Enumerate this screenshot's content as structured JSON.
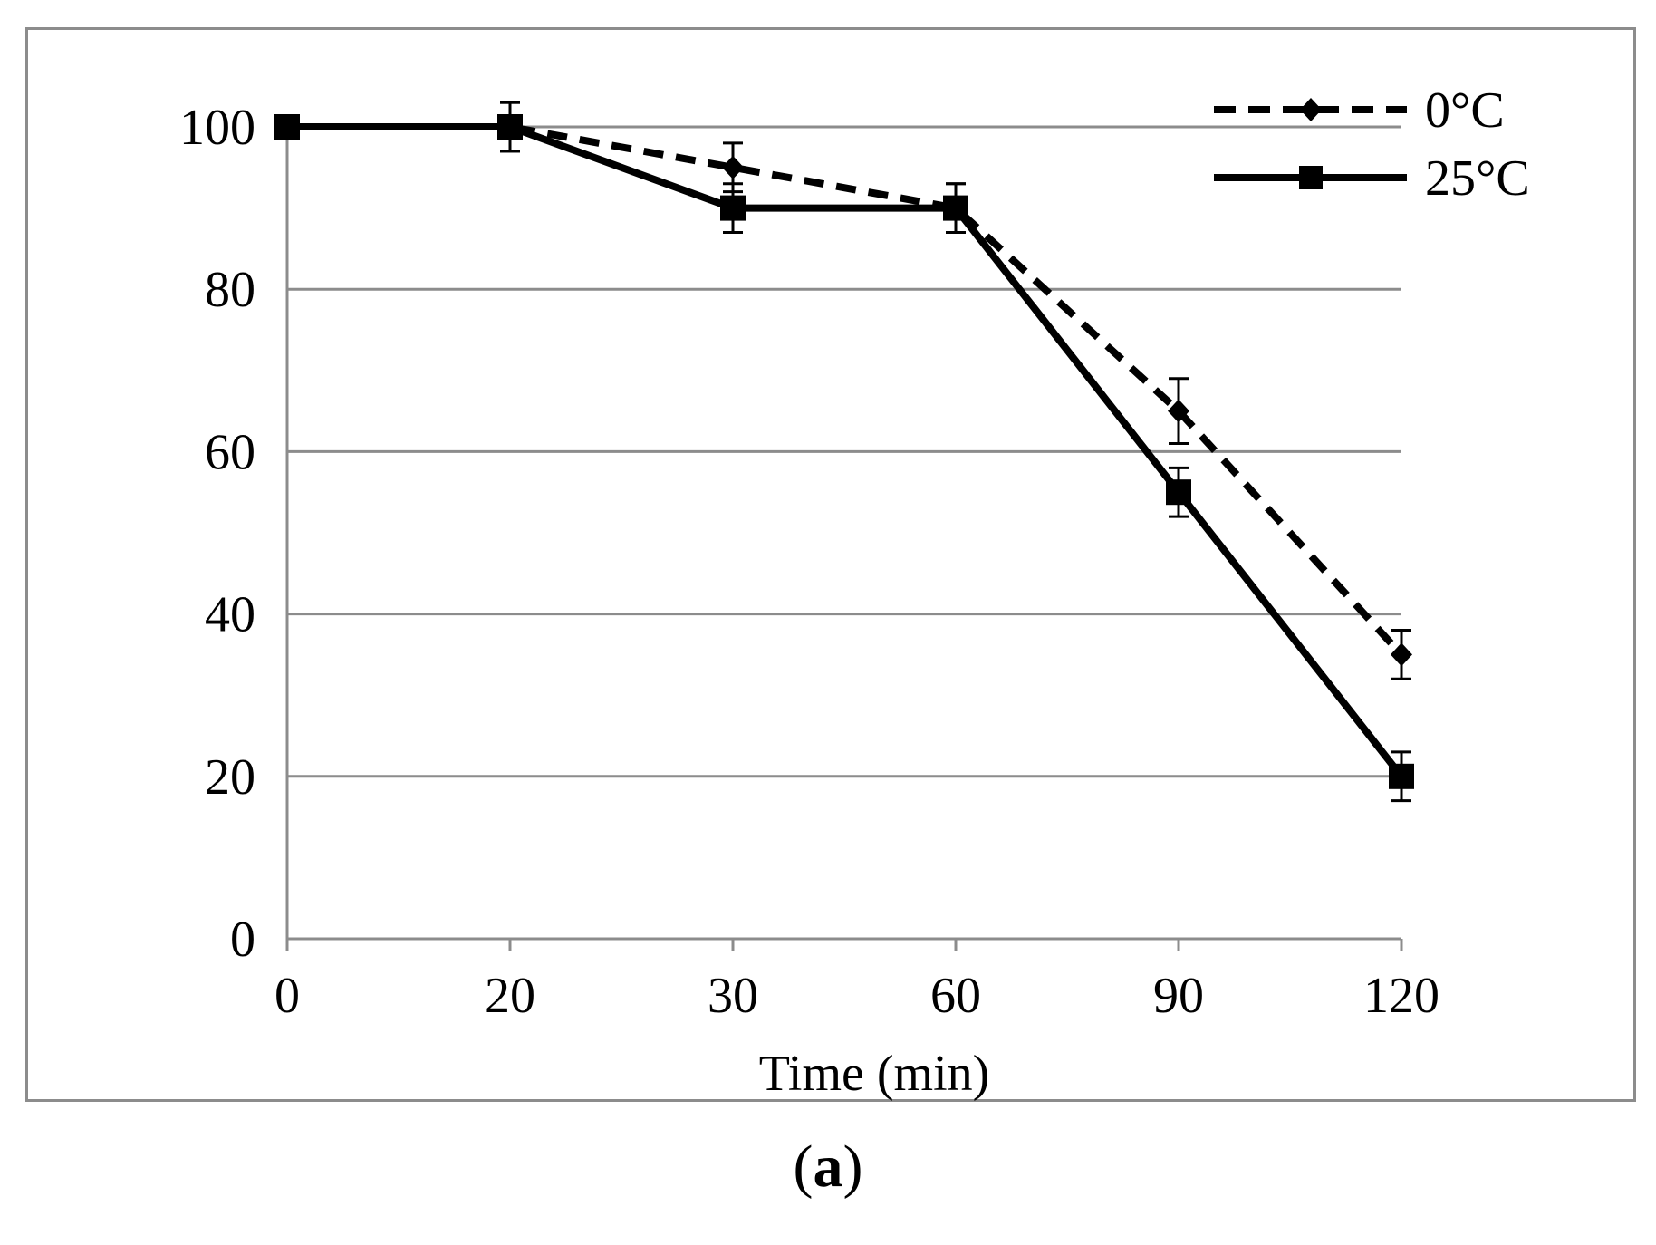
{
  "chart_data": {
    "type": "line",
    "title": "",
    "xlabel": "Time (min)",
    "ylabel": "",
    "categories": [
      "0",
      "20",
      "30",
      "60",
      "90",
      "120"
    ],
    "ylim": [
      0,
      100
    ],
    "yticks": [
      "0",
      "20",
      "40",
      "60",
      "80",
      "100"
    ],
    "grid": true,
    "legend_position": "top-right",
    "series": [
      {
        "name": "0°C",
        "line_style": "dashed",
        "marker": "diamond",
        "values": [
          100,
          100,
          95,
          90,
          65,
          35
        ],
        "errors": [
          0,
          3,
          3,
          3,
          4,
          3
        ]
      },
      {
        "name": "25°C",
        "line_style": "solid",
        "marker": "square",
        "values": [
          100,
          100,
          90,
          90,
          55,
          20
        ],
        "errors": [
          0,
          3,
          3,
          3,
          3,
          3
        ]
      }
    ],
    "colors": {
      "line": "#000000",
      "grid": "#8c8c8c",
      "frame": "#8c8c8c"
    }
  },
  "caption": {
    "open": "(",
    "letter": "a",
    "close": ")"
  }
}
